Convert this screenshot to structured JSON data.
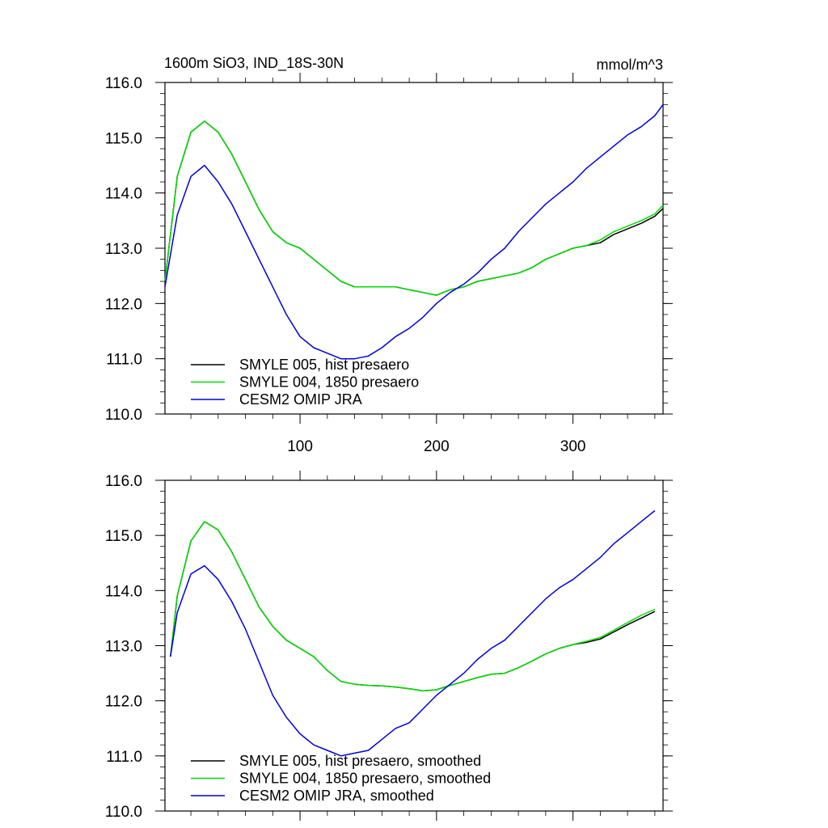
{
  "figure": {
    "title_left": "1600m SiO3, IND_18S-30N",
    "title_right": "mmol/m^3"
  },
  "chart_data": [
    {
      "type": "line",
      "title": "1600m SiO3, IND_18S-30N",
      "units": "mmol/m^3",
      "xlim": [
        1,
        366
      ],
      "ylim": [
        110,
        116
      ],
      "xticks": [
        100,
        200,
        300
      ],
      "xtick_labels": [
        "100",
        "200",
        "300"
      ],
      "yticks": [
        110,
        111,
        112,
        113,
        114,
        115,
        116
      ],
      "ytick_labels": [
        "110.0",
        "111.0",
        "112.0",
        "113.0",
        "114.0",
        "115.0",
        "116.0"
      ],
      "x": [
        1,
        10,
        20,
        30,
        40,
        50,
        60,
        70,
        80,
        90,
        100,
        110,
        120,
        130,
        140,
        150,
        160,
        170,
        180,
        190,
        200,
        210,
        220,
        230,
        240,
        250,
        260,
        270,
        280,
        290,
        300,
        310,
        320,
        330,
        340,
        350,
        360,
        366
      ],
      "series": [
        {
          "name": "SMYLE 005, hist presaero",
          "color": "#000000",
          "values": [
            112.4,
            114.3,
            115.1,
            115.3,
            115.1,
            114.7,
            114.2,
            113.7,
            113.3,
            113.1,
            113.0,
            112.8,
            112.6,
            112.4,
            112.3,
            112.3,
            112.3,
            112.3,
            112.25,
            112.2,
            112.15,
            112.25,
            112.3,
            112.4,
            112.45,
            112.5,
            112.55,
            112.65,
            112.8,
            112.9,
            113.0,
            113.05,
            113.1,
            113.25,
            113.35,
            113.45,
            113.58,
            113.72
          ]
        },
        {
          "name": "SMYLE 004, 1850 presaero",
          "color": "#00dd00",
          "values": [
            112.4,
            114.3,
            115.1,
            115.3,
            115.1,
            114.7,
            114.2,
            113.7,
            113.3,
            113.1,
            113.0,
            112.8,
            112.6,
            112.4,
            112.3,
            112.3,
            112.3,
            112.3,
            112.25,
            112.2,
            112.15,
            112.25,
            112.3,
            112.4,
            112.45,
            112.5,
            112.55,
            112.65,
            112.8,
            112.9,
            113.0,
            113.05,
            113.15,
            113.3,
            113.4,
            113.5,
            113.62,
            113.78
          ]
        },
        {
          "name": "CESM2 OMIP JRA",
          "color": "#0000dd",
          "values": [
            112.3,
            113.6,
            114.3,
            114.5,
            114.2,
            113.8,
            113.3,
            112.8,
            112.3,
            111.8,
            111.4,
            111.2,
            111.1,
            111.0,
            111.0,
            111.05,
            111.2,
            111.4,
            111.55,
            111.75,
            112.0,
            112.2,
            112.35,
            112.55,
            112.8,
            113.0,
            113.3,
            113.55,
            113.8,
            114.0,
            114.2,
            114.45,
            114.65,
            114.85,
            115.05,
            115.2,
            115.4,
            115.6
          ]
        }
      ],
      "legend_placement": "bottom-left"
    },
    {
      "type": "line",
      "xlim": [
        1,
        366
      ],
      "ylim": [
        110,
        116
      ],
      "xticks": [
        100,
        200,
        300
      ],
      "yticks": [
        110,
        111,
        112,
        113,
        114,
        115,
        116
      ],
      "ytick_labels": [
        "110.0",
        "111.0",
        "112.0",
        "113.0",
        "114.0",
        "115.0",
        "116.0"
      ],
      "x": [
        5,
        10,
        20,
        30,
        40,
        50,
        60,
        70,
        80,
        90,
        100,
        110,
        120,
        130,
        140,
        150,
        160,
        170,
        180,
        190,
        200,
        210,
        220,
        230,
        240,
        250,
        260,
        270,
        280,
        290,
        300,
        310,
        320,
        330,
        340,
        350,
        360
      ],
      "series": [
        {
          "name": "SMYLE 005, hist presaero, smoothed",
          "color": "#000000",
          "values": [
            112.8,
            113.9,
            114.9,
            115.25,
            115.1,
            114.7,
            114.2,
            113.7,
            113.35,
            113.1,
            112.95,
            112.8,
            112.55,
            112.35,
            112.3,
            112.28,
            112.27,
            112.25,
            112.22,
            112.18,
            112.2,
            112.28,
            112.35,
            112.42,
            112.48,
            112.5,
            112.6,
            112.72,
            112.85,
            112.95,
            113.02,
            113.06,
            113.12,
            113.25,
            113.38,
            113.5,
            113.62
          ]
        },
        {
          "name": "SMYLE 004, 1850 presaero, smoothed",
          "color": "#00dd00",
          "values": [
            112.8,
            113.9,
            114.9,
            115.25,
            115.1,
            114.7,
            114.2,
            113.7,
            113.35,
            113.1,
            112.95,
            112.8,
            112.55,
            112.35,
            112.3,
            112.28,
            112.27,
            112.25,
            112.22,
            112.18,
            112.2,
            112.28,
            112.35,
            112.42,
            112.48,
            112.5,
            112.6,
            112.72,
            112.85,
            112.95,
            113.02,
            113.08,
            113.15,
            113.28,
            113.42,
            113.55,
            113.66
          ]
        },
        {
          "name": "CESM2 OMIP JRA, smoothed",
          "color": "#0000dd",
          "values": [
            112.8,
            113.6,
            114.3,
            114.45,
            114.2,
            113.8,
            113.3,
            112.7,
            112.1,
            111.7,
            111.4,
            111.2,
            111.1,
            111.0,
            111.05,
            111.1,
            111.3,
            111.5,
            111.6,
            111.85,
            112.1,
            112.3,
            112.5,
            112.75,
            112.95,
            113.1,
            113.35,
            113.6,
            113.85,
            114.05,
            114.2,
            114.4,
            114.6,
            114.85,
            115.05,
            115.25,
            115.45
          ]
        }
      ],
      "legend_placement": "bottom-left"
    }
  ]
}
